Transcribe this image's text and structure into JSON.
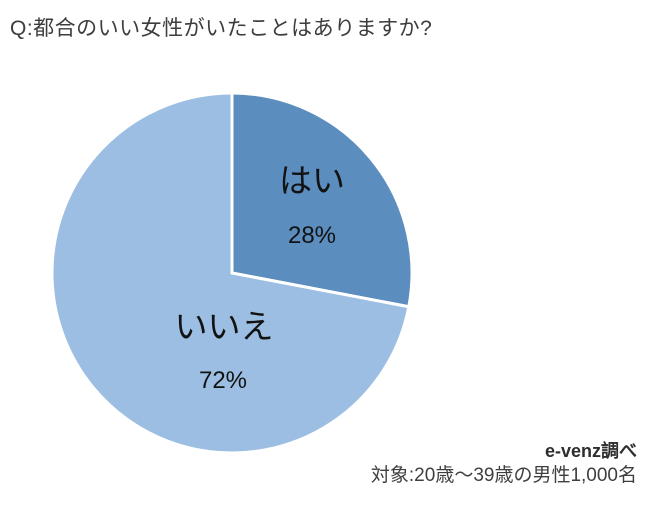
{
  "title": "Q:都合のいい女性がいたことはありますか?",
  "chart_data": {
    "type": "pie",
    "title": "Q:都合のいい女性がいたことはありますか?",
    "categories": [
      "はい",
      "いいえ"
    ],
    "values": [
      28,
      72
    ],
    "start_angle_deg": -90,
    "direction": "clockwise",
    "divider_color": "#FFFFFF",
    "legend_position": "none",
    "slices": [
      {
        "label": "はい",
        "value": 28,
        "pct_label": "28%",
        "color": "#5B8DBE"
      },
      {
        "label": "いいえ",
        "value": 72,
        "pct_label": "72%",
        "color": "#9CBEE2"
      }
    ]
  },
  "footer": {
    "source": "e-venz調べ",
    "audience": "対象:20歳〜39歳の男性1,000名"
  }
}
